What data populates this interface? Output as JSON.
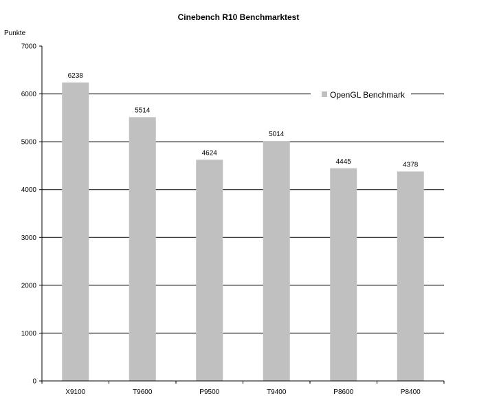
{
  "chart_data": {
    "type": "bar",
    "title": "Cinebench R10 Benchmarktest",
    "ylabel": "Punkte",
    "xlabel": "",
    "categories": [
      "X9100",
      "T9600",
      "P9500",
      "T9400",
      "P8600",
      "P8400"
    ],
    "series": [
      {
        "name": "OpenGL Benchmark",
        "values": [
          6238,
          5514,
          4624,
          5014,
          4445,
          4378
        ],
        "color": "#c0c0c0"
      }
    ],
    "ylim": [
      0,
      7000
    ],
    "yticks": [
      0,
      1000,
      2000,
      3000,
      4000,
      5000,
      6000,
      7000
    ],
    "grid": "horizontal",
    "legend_position": "top-right",
    "data_labels": [
      "6238",
      "5514",
      "4624",
      "5014",
      "4445",
      "4378"
    ]
  }
}
